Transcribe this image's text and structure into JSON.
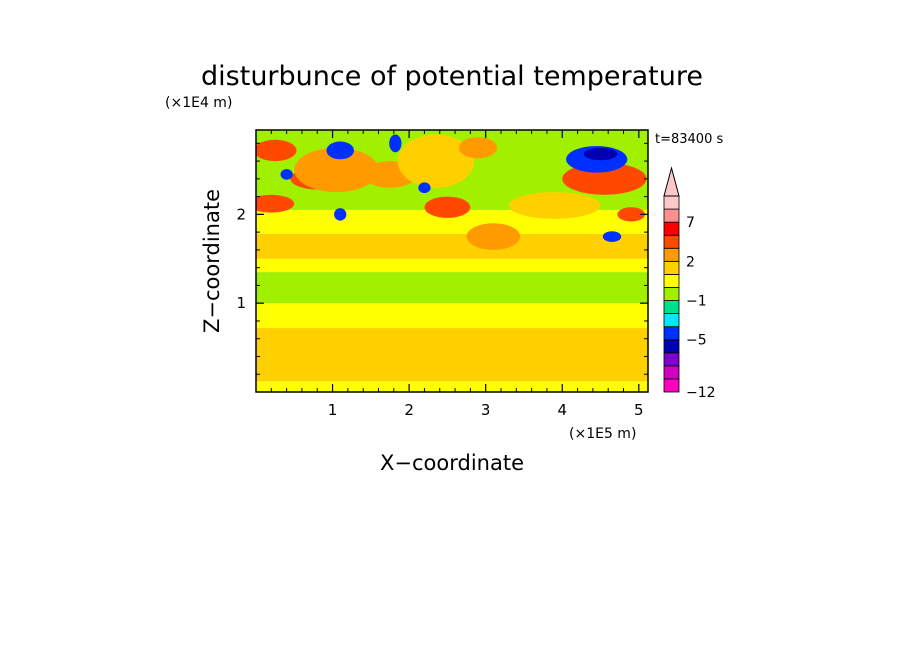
{
  "chart_data": {
    "type": "heatmap",
    "title": "disturbunce of potential temperature",
    "xlabel": "X−coordinate",
    "ylabel": "Z−coordinate",
    "x_unit": "(×1E5 m)",
    "y_unit": "(×1E4 m)",
    "time_label": "t=83400 s",
    "xlim": [
      0,
      5.12
    ],
    "ylim": [
      0,
      2.95
    ],
    "x_ticks": [
      "1",
      "2",
      "3",
      "4",
      "5"
    ],
    "x_tick_values": [
      1,
      2,
      3,
      4,
      5
    ],
    "y_ticks": [
      "1",
      "2"
    ],
    "y_tick_values": [
      1,
      2
    ],
    "colorbar": {
      "levels": [
        -12,
        -10,
        -8,
        -6,
        -5,
        -4,
        -3,
        -1,
        0,
        1,
        2,
        3,
        5,
        7,
        9,
        11
      ],
      "labels": [
        "−12",
        "−5",
        "−1",
        "2",
        "7"
      ],
      "label_values": [
        -12,
        -5,
        -1,
        2,
        7
      ],
      "colors": [
        "#ff00c0",
        "#d000c0",
        "#8000d0",
        "#0000b0",
        "#0030ff",
        "#00e8ff",
        "#00e08c",
        "#a0f000",
        "#ffff00",
        "#ffd000",
        "#ff9a00",
        "#ff4800",
        "#ff0000",
        "#ff9090",
        "#ffc8c8"
      ],
      "extend": "max"
    },
    "bands": [
      {
        "z": [
          0.0,
          0.12
        ],
        "value": 0.5
      },
      {
        "z": [
          0.12,
          0.72
        ],
        "value": 1.5
      },
      {
        "z": [
          0.72,
          1.0
        ],
        "value": 0.5
      },
      {
        "z": [
          1.0,
          1.35
        ],
        "value": -0.5
      },
      {
        "z": [
          1.35,
          1.5
        ],
        "value": 0.5
      },
      {
        "z": [
          1.5,
          1.78
        ],
        "value": 1.5
      },
      {
        "z": [
          1.78,
          2.05
        ],
        "value": 0.5
      },
      {
        "z": [
          2.05,
          2.95
        ],
        "value": -0.5
      }
    ],
    "features": [
      {
        "x": 0.25,
        "z": 2.72,
        "rx": 0.28,
        "rz": 0.12,
        "value": 4
      },
      {
        "x": 0.8,
        "z": 2.4,
        "rx": 0.35,
        "rz": 0.12,
        "value": 4
      },
      {
        "x": 0.2,
        "z": 2.12,
        "rx": 0.3,
        "rz": 0.1,
        "value": 4
      },
      {
        "x": 1.05,
        "z": 2.5,
        "rx": 0.55,
        "rz": 0.25,
        "value": 2.5
      },
      {
        "x": 1.1,
        "z": 2.72,
        "rx": 0.18,
        "rz": 0.1,
        "value": -4.5
      },
      {
        "x": 1.82,
        "z": 2.8,
        "rx": 0.08,
        "rz": 0.1,
        "value": -4.5
      },
      {
        "x": 1.75,
        "z": 2.45,
        "rx": 0.35,
        "rz": 0.15,
        "value": 2.5
      },
      {
        "x": 2.35,
        "z": 2.6,
        "rx": 0.5,
        "rz": 0.3,
        "value": 1.5
      },
      {
        "x": 2.9,
        "z": 2.75,
        "rx": 0.25,
        "rz": 0.12,
        "value": 2.5
      },
      {
        "x": 2.5,
        "z": 2.08,
        "rx": 0.3,
        "rz": 0.12,
        "value": 4
      },
      {
        "x": 3.1,
        "z": 1.75,
        "rx": 0.35,
        "rz": 0.15,
        "value": 2.5
      },
      {
        "x": 3.9,
        "z": 2.1,
        "rx": 0.6,
        "rz": 0.15,
        "value": 1.5
      },
      {
        "x": 4.55,
        "z": 2.4,
        "rx": 0.55,
        "rz": 0.18,
        "value": 4
      },
      {
        "x": 4.45,
        "z": 2.62,
        "rx": 0.4,
        "rz": 0.15,
        "value": -4.5
      },
      {
        "x": 4.5,
        "z": 2.68,
        "rx": 0.22,
        "rz": 0.07,
        "value": -5.5
      },
      {
        "x": 4.9,
        "z": 1.65,
        "rx": 0.25,
        "rz": 0.1,
        "value": 1.5
      },
      {
        "x": 4.9,
        "z": 2.0,
        "rx": 0.18,
        "rz": 0.08,
        "value": 4
      },
      {
        "x": 1.1,
        "z": 2.0,
        "rx": 0.08,
        "rz": 0.07,
        "value": -4.5
      },
      {
        "x": 2.2,
        "z": 2.3,
        "rx": 0.08,
        "rz": 0.06,
        "value": -4.5
      },
      {
        "x": 0.4,
        "z": 2.45,
        "rx": 0.08,
        "rz": 0.06,
        "value": -4.5
      },
      {
        "x": 4.65,
        "z": 1.75,
        "rx": 0.12,
        "rz": 0.06,
        "value": -4.5
      }
    ]
  }
}
